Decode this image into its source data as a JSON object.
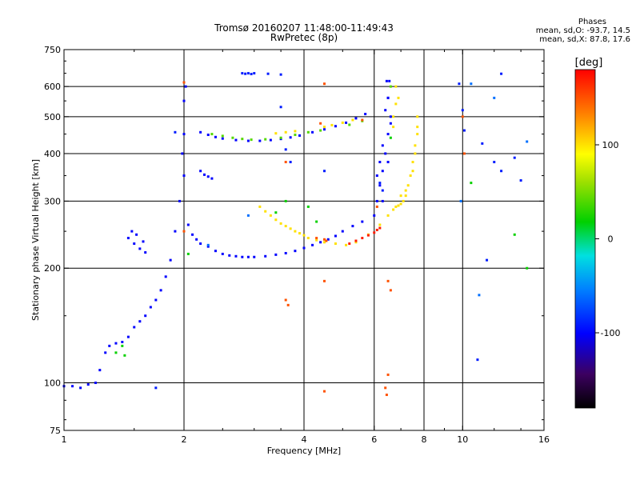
{
  "header": {
    "title_line1": "Tromsø 20160207 11:48:00-11:49:43",
    "title_line2": "RwPretec (8p)"
  },
  "phases": {
    "heading": "Phases",
    "o_mode": "mean, sd,O: -93.7, 14.5",
    "x_mode": "mean, sd,X:  87.8, 17.6"
  },
  "colorbar": {
    "label": "[deg]",
    "range": [
      -180,
      180
    ],
    "ticks": [
      {
        "value": 100,
        "label": "100"
      },
      {
        "value": 0,
        "label": "0"
      },
      {
        "value": -100,
        "label": "-100"
      }
    ]
  },
  "chart_data": {
    "type": "scatter",
    "xlabel": "Frequency [MHz]",
    "ylabel": "Stationary phase Virtual Height [km]",
    "xscale": "log",
    "yscale": "log",
    "xlim": [
      1,
      16
    ],
    "ylim": [
      75,
      750
    ],
    "grid": true,
    "x_ticks": [
      1,
      2,
      4,
      6,
      8,
      10,
      16
    ],
    "y_ticks": [
      75,
      100,
      200,
      300,
      400,
      500,
      600,
      750
    ],
    "x_gridlines": [
      2,
      4,
      6,
      8,
      10
    ],
    "y_gridlines": [
      100,
      200,
      300,
      400,
      500,
      600
    ],
    "color_variable": "phase [deg]",
    "series": [
      {
        "phase": -100,
        "x": [
          1.0,
          1.05,
          1.1,
          1.15,
          1.2,
          1.23,
          1.27,
          1.3,
          1.35,
          1.4,
          1.45,
          1.5,
          1.55,
          1.6,
          1.65,
          1.7,
          1.75,
          1.8,
          1.85,
          1.9,
          1.95,
          2.0,
          2.0,
          2.0,
          2.02,
          1.98,
          2.05,
          2.1,
          2.15,
          2.2,
          2.3,
          2.4,
          2.5,
          2.6,
          2.7,
          2.8,
          2.9,
          3.0,
          3.2,
          3.4,
          3.6,
          3.8,
          4.0,
          4.2,
          4.4,
          4.6,
          4.8,
          5.0,
          5.3,
          5.6,
          6.0,
          6.3,
          6.5,
          6.6,
          6.5,
          6.4,
          1.45,
          1.5,
          1.55,
          1.6,
          1.48,
          1.52,
          1.58,
          2.2,
          2.3,
          2.4,
          2.5,
          2.7,
          2.9,
          3.1,
          3.3,
          3.5,
          3.7,
          3.9,
          4.2,
          4.5,
          4.8,
          5.1,
          5.4,
          5.7,
          2.2,
          2.25,
          2.3,
          2.35,
          6.1,
          6.2,
          6.3,
          6.4,
          6.5,
          6.6,
          6.5,
          6.45,
          6.55,
          6.3,
          6.2,
          6.1
        ],
        "y": [
          98,
          98,
          97,
          99,
          100,
          108,
          120,
          125,
          127,
          128,
          132,
          140,
          145,
          150,
          158,
          165,
          175,
          190,
          210,
          250,
          300,
          350,
          450,
          550,
          600,
          400,
          260,
          245,
          238,
          232,
          228,
          222,
          218,
          216,
          215,
          214,
          214,
          214,
          215,
          217,
          219,
          222,
          226,
          230,
          234,
          238,
          243,
          250,
          258,
          265,
          275,
          300,
          380,
          480,
          560,
          520,
          240,
          232,
          225,
          220,
          250,
          245,
          235,
          455,
          448,
          442,
          438,
          434,
          432,
          432,
          434,
          437,
          441,
          446,
          455,
          463,
          472,
          482,
          495,
          508,
          360,
          352,
          348,
          344,
          300,
          330,
          360,
          400,
          450,
          500,
          560,
          620,
          620,
          420,
          380,
          350
        ]
      },
      {
        "phase": 100,
        "x": [
          3.1,
          3.2,
          3.3,
          3.4,
          3.5,
          3.6,
          3.7,
          3.8,
          3.9,
          4.0,
          4.1,
          4.3,
          4.5,
          4.8,
          5.1,
          5.4,
          5.8,
          6.2,
          6.5,
          6.7,
          6.8,
          6.9,
          7.0,
          7.1,
          7.2,
          7.3,
          7.4,
          7.5,
          7.6,
          7.7,
          7.7,
          7.7,
          7.6,
          7.5,
          7.2,
          7.0,
          6.9,
          6.8,
          6.8,
          6.7,
          6.7,
          4.5,
          4.7,
          5.0,
          5.3,
          3.4,
          3.6,
          3.8
        ],
        "y": [
          290,
          282,
          275,
          268,
          262,
          258,
          254,
          250,
          247,
          244,
          240,
          237,
          234,
          232,
          230,
          234,
          245,
          260,
          275,
          285,
          290,
          292,
          295,
          300,
          310,
          330,
          350,
          380,
          420,
          470,
          500,
          450,
          400,
          360,
          320,
          310,
          560,
          600,
          540,
          500,
          470,
          470,
          475,
          482,
          490,
          452,
          455,
          458
        ]
      },
      {
        "phase": 40,
        "x": [
          2.35,
          2.5,
          2.65,
          2.8,
          2.95,
          3.2,
          3.5,
          3.8,
          4.1,
          4.4,
          5.2,
          5.6,
          6.6
        ],
        "y": [
          450,
          445,
          440,
          437,
          435,
          436,
          440,
          448,
          455,
          460,
          476,
          487,
          600
        ]
      },
      {
        "phase": 150,
        "x": [
          4.3,
          4.5,
          4.55,
          4.5,
          4.5,
          3.6,
          3.65,
          3.6,
          6.5,
          6.5,
          6.6,
          6.4,
          6.45,
          5.6,
          6.1,
          10.0,
          10.1,
          2.0,
          2.0,
          4.5,
          4.4
        ],
        "y": [
          240,
          238,
          236,
          95,
          610,
          165,
          160,
          380,
          185,
          105,
          175,
          97,
          93,
          490,
          290,
          500,
          400,
          615,
          250,
          185,
          480
        ]
      },
      {
        "phase": -90,
        "x": [
          2.8,
          2.85,
          2.9,
          2.95,
          3.0,
          3.25,
          3.5,
          12.5,
          9.8,
          10.0,
          10.1,
          11.2,
          12.0,
          12.5,
          13.5,
          14.0,
          11.5,
          10.9,
          3.5,
          3.6,
          3.7,
          4.5,
          6.2,
          6.3,
          1.9,
          1.7
        ],
        "y": [
          650,
          648,
          650,
          647,
          650,
          648,
          645,
          648,
          610,
          520,
          460,
          425,
          380,
          360,
          390,
          340,
          210,
          115,
          530,
          410,
          380,
          360,
          335,
          320,
          455,
          97
        ]
      },
      {
        "phase": 170,
        "x": [
          5.2,
          5.4,
          5.6,
          5.8,
          6.0,
          6.1,
          6.2
        ],
        "y": [
          232,
          236,
          240,
          244,
          248,
          252,
          255
        ]
      },
      {
        "phase": 20,
        "x": [
          1.35,
          1.4,
          1.42,
          2.05,
          4.1,
          4.3,
          6.6,
          10.5,
          13.5,
          14.5,
          3.4,
          3.6
        ],
        "y": [
          120,
          125,
          118,
          218,
          290,
          265,
          440,
          335,
          245,
          200,
          280,
          300
        ]
      },
      {
        "phase": -60,
        "x": [
          10.5,
          12.0,
          14.5,
          9.9,
          11.0,
          2.3,
          2.9
        ],
        "y": [
          610,
          560,
          430,
          300,
          170,
          230,
          275
        ]
      }
    ]
  }
}
